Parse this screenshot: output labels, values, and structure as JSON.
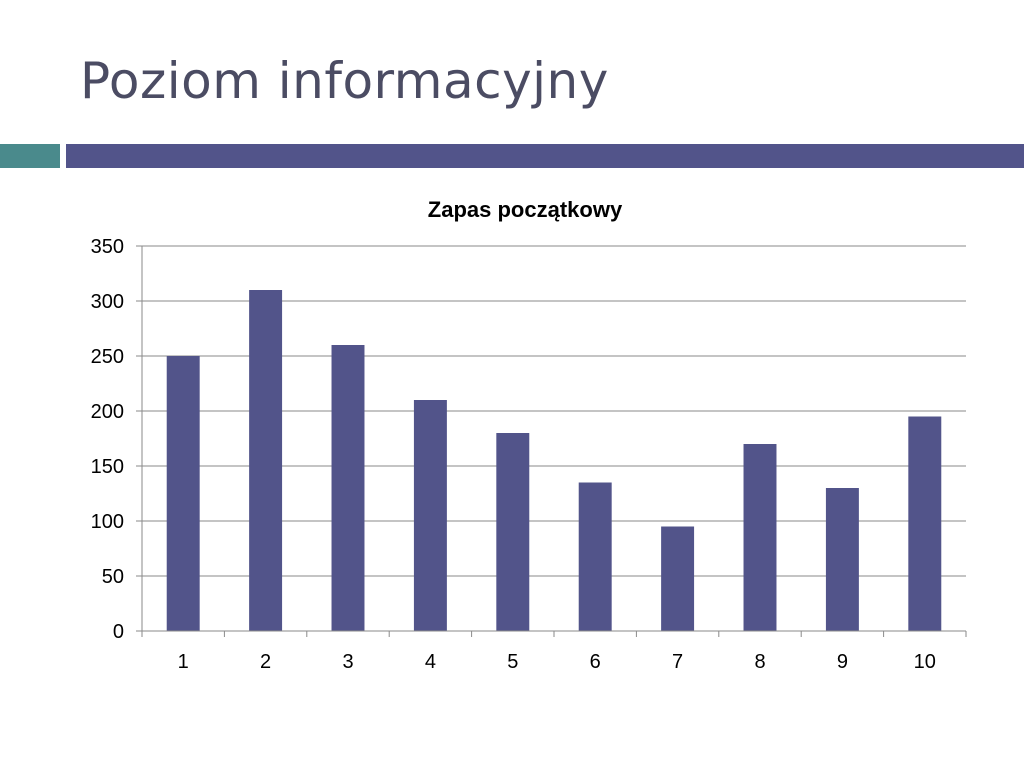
{
  "slide": {
    "title": "Poziom informacyjny"
  },
  "colors": {
    "title_text": "#4b4c63",
    "accent_teal": "#4a8a8c",
    "accent_navy": "#52548a",
    "bar_fill": "#52548a",
    "gridline": "#8a8a8a"
  },
  "chart_data": {
    "type": "bar",
    "title": "Zapas początkowy",
    "categories": [
      "1",
      "2",
      "3",
      "4",
      "5",
      "6",
      "7",
      "8",
      "9",
      "10"
    ],
    "values": [
      250,
      310,
      260,
      210,
      180,
      135,
      95,
      170,
      130,
      195
    ],
    "xlabel": "",
    "ylabel": "",
    "ylim": [
      0,
      350
    ],
    "yticks": [
      0,
      50,
      100,
      150,
      200,
      250,
      300,
      350
    ],
    "grid": true,
    "legend": "none"
  }
}
